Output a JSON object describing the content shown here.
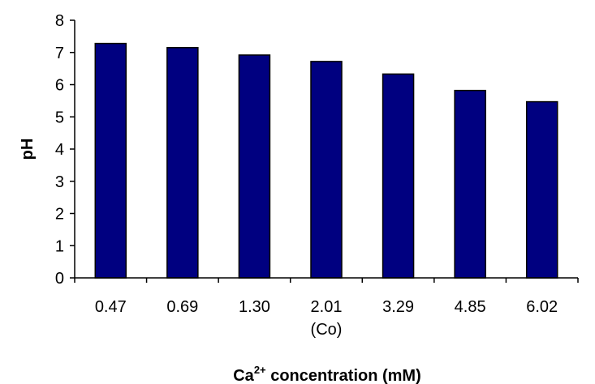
{
  "chart_data": {
    "type": "bar",
    "categories": [
      "0.47",
      "0.69",
      "1.30",
      "2.01",
      "3.29",
      "4.85",
      "6.02"
    ],
    "category_sublabels": [
      "",
      "",
      "",
      "(Co)",
      "",
      "",
      ""
    ],
    "values": [
      7.28,
      7.15,
      6.92,
      6.72,
      6.33,
      5.82,
      5.47
    ],
    "title": "",
    "xlabel_main": "Ca",
    "xlabel_sup": "2+",
    "xlabel_rest": " concentration (mM)",
    "ylabel": "pH",
    "ylim": [
      0,
      8
    ],
    "yticks": [
      "0",
      "1",
      "2",
      "3",
      "4",
      "5",
      "6",
      "7",
      "8"
    ],
    "bar_color": "#000080",
    "bar_edge_color": "#000000",
    "grid": false,
    "legend": "none"
  }
}
